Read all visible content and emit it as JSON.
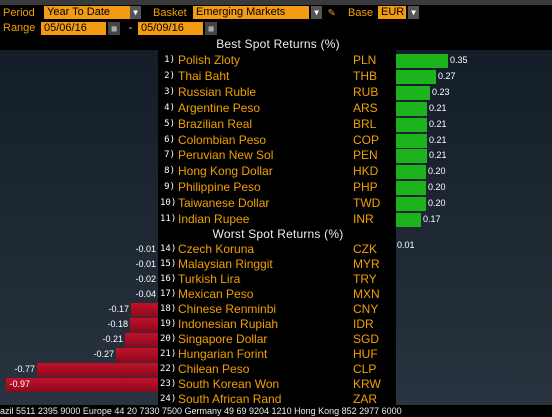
{
  "controls": {
    "period_label": "Period",
    "period_value": "Year To Date",
    "basket_label": "Basket",
    "basket_value": "Emerging Markets",
    "base_label": "Base",
    "base_value": "EUR",
    "range_label": "Range",
    "range_start": "05/06/16",
    "range_sep": "-",
    "range_end": "05/09/16"
  },
  "best_heading": "Best Spot Returns (%)",
  "worst_heading": "Worst Spot Returns (%)",
  "best": [
    {
      "rank": "1)",
      "name": "Polish Zloty",
      "code": "PLN",
      "value": "0.35",
      "v": 0.35
    },
    {
      "rank": "2)",
      "name": "Thai Baht",
      "code": "THB",
      "value": "0.27",
      "v": 0.27
    },
    {
      "rank": "3)",
      "name": "Russian Ruble",
      "code": "RUB",
      "value": "0.23",
      "v": 0.23
    },
    {
      "rank": "4)",
      "name": "Argentine Peso",
      "code": "ARS",
      "value": "0.21",
      "v": 0.21
    },
    {
      "rank": "5)",
      "name": "Brazilian Real",
      "code": "BRL",
      "value": "0.21",
      "v": 0.21
    },
    {
      "rank": "6)",
      "name": "Colombian Peso",
      "code": "COP",
      "value": "0.21",
      "v": 0.21
    },
    {
      "rank": "7)",
      "name": "Peruvian New Sol",
      "code": "PEN",
      "value": "0.21",
      "v": 0.21
    },
    {
      "rank": "8)",
      "name": "Hong Kong Dollar",
      "code": "HKD",
      "value": "0.20",
      "v": 0.2
    },
    {
      "rank": "9)",
      "name": "Philippine Peso",
      "code": "PHP",
      "value": "0.20",
      "v": 0.2
    },
    {
      "rank": "10)",
      "name": "Taiwanese Dollar",
      "code": "TWD",
      "value": "0.20",
      "v": 0.2
    },
    {
      "rank": "11)",
      "name": "Indian Rupee",
      "code": "INR",
      "value": "0.17",
      "v": 0.17
    }
  ],
  "gap_value": "0.01",
  "worst": [
    {
      "rank": "14)",
      "name": "Czech Koruna",
      "code": "CZK",
      "value": "-0.01",
      "v": -0.01
    },
    {
      "rank": "15)",
      "name": "Malaysian Ringgit",
      "code": "MYR",
      "value": "-0.01",
      "v": -0.01
    },
    {
      "rank": "16)",
      "name": "Turkish Lira",
      "code": "TRY",
      "value": "-0.02",
      "v": -0.02
    },
    {
      "rank": "17)",
      "name": "Mexican Peso",
      "code": "MXN",
      "value": "-0.04",
      "v": -0.04
    },
    {
      "rank": "18)",
      "name": "Chinese Renminbi",
      "code": "CNY",
      "value": "-0.17",
      "v": -0.17
    },
    {
      "rank": "19)",
      "name": "Indonesian Rupiah",
      "code": "IDR",
      "value": "-0.18",
      "v": -0.18
    },
    {
      "rank": "20)",
      "name": "Singapore Dollar",
      "code": "SGD",
      "value": "-0.21",
      "v": -0.21
    },
    {
      "rank": "21)",
      "name": "Hungarian Forint",
      "code": "HUF",
      "value": "-0.27",
      "v": -0.27
    },
    {
      "rank": "22)",
      "name": "Chilean Peso",
      "code": "CLP",
      "value": "-0.77",
      "v": -0.77
    },
    {
      "rank": "23)",
      "name": "South Korean Won",
      "code": "KRW",
      "value": "-0.97",
      "v": -0.97
    },
    {
      "rank": "24)",
      "name": "South African Rand",
      "code": "ZAR",
      "value": "",
      "v": null
    }
  ],
  "ticker": "azil 5511 2395 9000 Europe 44 20 7330 7500 Germany 49 69 9204 1210 Hong Kong 852 2977 6000",
  "colors": {
    "positive_bar": "#1db31d",
    "negative_bar": "#c3102a",
    "label_orange": "#f0a000"
  }
}
